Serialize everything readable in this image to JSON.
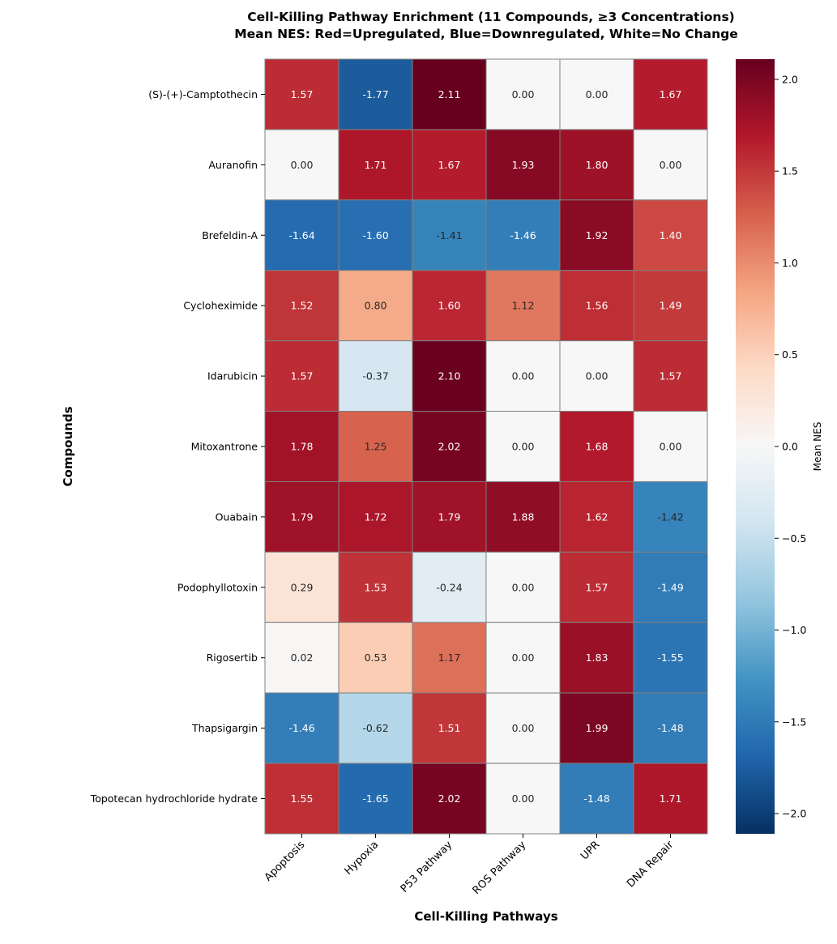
{
  "chart_data": {
    "type": "heatmap",
    "title": "Cell-Killing Pathway Enrichment (11 Compounds, ≥3 Concentrations)",
    "subtitle": "Mean NES: Red=Upregulated, Blue=Downregulated, White=No Change",
    "xlabel": "Cell-Killing Pathways",
    "ylabel": "Compounds",
    "colorbar_label": "Mean NES",
    "colormap": "RdBu_r",
    "vlim": [
      -2.11,
      2.11
    ],
    "colorbar_ticks": [
      -2.0,
      -1.5,
      -1.0,
      -0.5,
      0.0,
      0.5,
      1.0,
      1.5,
      2.0
    ],
    "colorbar_tick_labels": [
      "−2.0",
      "−1.5",
      "−1.0",
      "−0.5",
      "0.0",
      "0.5",
      "1.0",
      "1.5",
      "2.0"
    ],
    "columns": [
      "Apoptosis",
      "Hypoxia",
      "P53 Pathway",
      "ROS Pathway",
      "UPR",
      "DNA Repair"
    ],
    "rows": [
      "(S)-(+)-Camptothecin",
      "Auranofin",
      "Brefeldin-A",
      "Cycloheximide",
      "Idarubicin",
      "Mitoxantrone",
      "Ouabain",
      "Podophyllotoxin",
      "Rigosertib",
      "Thapsigargin",
      "Topotecan hydrochloride hydrate"
    ],
    "values": [
      [
        1.57,
        -1.77,
        2.11,
        0.0,
        0.0,
        1.67
      ],
      [
        0.0,
        1.71,
        1.67,
        1.93,
        1.8,
        0.0
      ],
      [
        -1.64,
        -1.6,
        -1.41,
        -1.46,
        1.92,
        1.4
      ],
      [
        1.52,
        0.8,
        1.6,
        1.12,
        1.56,
        1.49
      ],
      [
        1.57,
        -0.37,
        2.1,
        0.0,
        0.0,
        1.57
      ],
      [
        1.78,
        1.25,
        2.02,
        0.0,
        1.68,
        0.0
      ],
      [
        1.79,
        1.72,
        1.79,
        1.88,
        1.62,
        -1.42
      ],
      [
        0.29,
        1.53,
        -0.24,
        0.0,
        1.57,
        -1.49
      ],
      [
        0.02,
        0.53,
        1.17,
        0.0,
        1.83,
        -1.55
      ],
      [
        -1.46,
        -0.62,
        1.51,
        0.0,
        1.99,
        -1.48
      ],
      [
        1.55,
        -1.65,
        2.02,
        0.0,
        -1.48,
        1.71
      ]
    ],
    "annotation_format": "0.00",
    "grid_line_color": "#808080",
    "colorbar_placement": "right"
  }
}
